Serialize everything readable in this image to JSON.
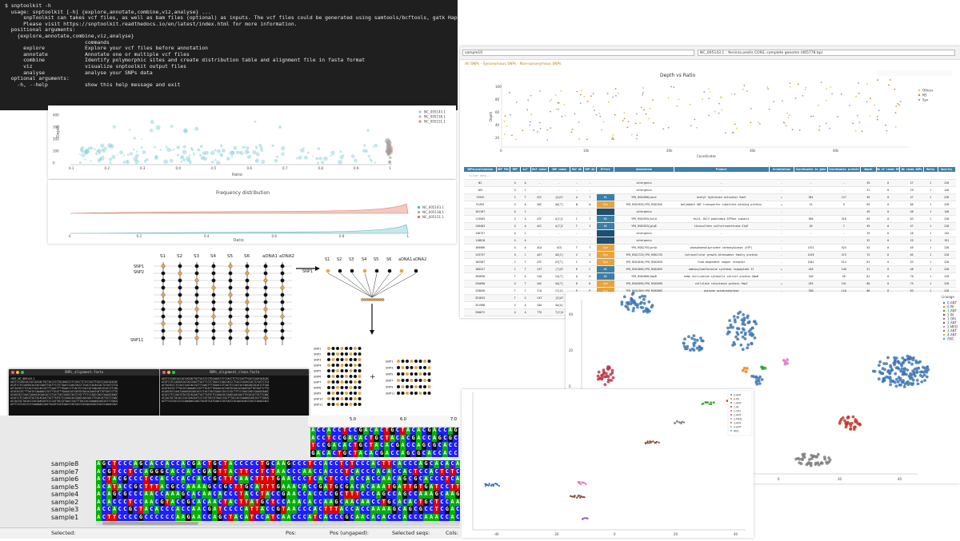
{
  "terminal": {
    "lines": [
      "$ snptoolkit -h",
      "  usage: snptoolkit [-h] {explore,annotate,combine,viz,analyse} ...",
      "",
      "      snpToolkit can takes vcf files, as well as bam files (optional) as inputs. The vcf files could be generated using samtools/bcftools, gatk HaplotypeCaller or freeBayes.",
      "      Please visit https://snptoolkit.readthedocs.io/en/latest/index.html for more information.",
      "",
      "",
      "  positional arguments:",
      "    {explore,annotate,combine,viz,analyse}",
      "                          commands",
      "      explore             Explore your vcf files before annotation",
      "      annotate            Annotate one or multiple vcf files",
      "      combine             Identify polymorphic sites and create distribution table and alignment file in fasta format",
      "      viz                 visualize snptoolkit output files",
      "      analyse             analyse your SNPs data",
      "",
      "  optional arguments:",
      "    -h, --help            show this help message and exit"
    ]
  },
  "depth_plot": {
    "legend": [
      "NC_005143.1",
      "NC_005138.1",
      "NC_005151.1"
    ],
    "y_ticks": [
      "400",
      "300",
      "200",
      "100",
      "0"
    ],
    "x_ticks": [
      "0.1",
      "0.2",
      "0.3",
      "0.4",
      "0.5",
      "0.6",
      "0.7",
      "0.8",
      "0.9",
      "1"
    ],
    "ylabel": "Depth",
    "xlabel": "Ratio"
  },
  "freq_plot": {
    "title": "Frequency distribution",
    "legend": [
      "NC_005143.1",
      "NC_005138.1",
      "NC_005151.1"
    ],
    "x_ticks": [
      "0",
      "0.2",
      "0.4",
      "0.6",
      "0.8",
      "1"
    ],
    "xlabel": "Ratio"
  },
  "diagram": {
    "columns": [
      "S1",
      "S2",
      "S3",
      "S4",
      "S5",
      "S6",
      "aDNA1",
      "aDNA2"
    ],
    "row_labels": [
      "SNP1",
      "SNP2",
      "SNP11"
    ],
    "right_columns": [
      "S1",
      "S2",
      "S3",
      "S4",
      "S5",
      "S6",
      "aDNA1",
      "aDNA2"
    ],
    "right_row_label": "SNP1",
    "mini_rows_left": [
      "SNP1",
      "SNP2",
      "SNP3",
      "SNP4",
      "SNP5",
      "SNP6",
      "SNP7",
      "SNP8",
      "SNP9",
      "SNP10",
      "SNP11"
    ],
    "mini_rows_right": [
      "SNP1",
      "SNP3",
      "SNP5",
      "SNP7",
      "SNP9",
      "SNP11"
    ],
    "plus": "+"
  },
  "browser": {
    "sample": "sample10",
    "accession": "NC_005143.1 : Yersinia pestis CO92, complete genome (465778 bp)",
    "subnav": "All SNPs - Synonymous SNPs - Non-synonymous SNPs",
    "chart_title": "Depth vs Ratio",
    "chart_xlabel": "Coordinates",
    "chart_ylabel": "Depth",
    "chart_legend": [
      "Others",
      "NS",
      "Syn"
    ],
    "chart_yticks": [
      "100",
      "80",
      "60",
      "40",
      "20"
    ],
    "chart_xticks": [
      "0",
      "10k",
      "20k",
      "30k",
      "40k"
    ]
  },
  "table": {
    "headers": [
      "SNPsLocalization",
      "REF POS",
      "REF",
      "ALT",
      "Ref codon",
      "SNP codon",
      "Ref AA",
      "SNP AA",
      "Effect",
      "Annotation",
      "Product",
      "Orientation",
      "Coordinates in gene",
      "Coordinates protein",
      "Depth",
      "Nb of reads REF",
      "Nb reads SNPs",
      "Ratio",
      "Quality"
    ],
    "filter_row": [
      "Filter data...",
      "",
      "",
      "",
      "",
      "",
      "",
      "",
      "",
      "",
      "",
      "",
      "",
      "",
      "",
      "",
      "",
      "",
      ""
    ],
    "rows": [
      [
        "NI",
        "",
        "G",
        "A",
        "-",
        "-",
        "-",
        "-",
        "",
        "intergenic",
        "-",
        "-",
        "-",
        "-",
        "29",
        "0",
        "27",
        "1",
        "228"
      ],
      [
        "165",
        "",
        "G",
        "C",
        "-",
        "-",
        "-",
        "-",
        "",
        "intergenic",
        "-",
        "-",
        "-",
        "-",
        "31",
        "0",
        "29",
        "1",
        "148"
      ],
      [
        "74555",
        "",
        "C",
        "T",
        "GCC",
        "[A]CC",
        "A",
        "T",
        "NS",
        "YPO_RS01890|ansC",
        "acetyl hydrolase activator RsmY",
        "+",
        "381",
        "127",
        "49",
        "0",
        "47",
        "1",
        "228"
      ],
      [
        "91494",
        "",
        "G",
        "A",
        "AAC",
        "AA[T]",
        "N",
        "N",
        "Syn",
        "YPO_RS01935|YPO_RS01945",
        "molybdate ABC transporter substrate-binding protein",
        "+",
        "15",
        "5",
        "69",
        "0",
        "66",
        "1",
        "228"
      ],
      [
        "101167",
        "",
        "A",
        "C",
        "-",
        "-",
        "-",
        "-",
        "",
        "intergenic",
        "-",
        "-",
        "-",
        "-",
        "49",
        "0",
        "46",
        "1",
        "148"
      ],
      [
        "113565",
        "",
        "G",
        "A",
        "ATC",
        "A[C]C",
        "I",
        "T",
        "NS",
        "YPO_RS01955|hslU",
        "HslU--HslV peptidase ATPase subunit",
        "-",
        "956",
        "318",
        "69",
        "0",
        "63",
        "1",
        "228"
      ],
      [
        "130463",
        "",
        "G",
        "A",
        "ACC",
        "A[T]C",
        "T",
        "I",
        "NS",
        "YPO_RS01925|glpE",
        "thiosulfate sulfurtransferase GlpE",
        "-",
        "20",
        "7",
        "49",
        "0",
        "47",
        "1",
        "228"
      ],
      [
        "138757",
        "",
        "A",
        "C",
        "-",
        "-",
        "-",
        "-",
        "",
        "intergenic",
        "-",
        "-",
        "-",
        "-",
        "29",
        "0",
        "28",
        "1",
        "145"
      ],
      [
        "118810",
        "",
        "G",
        "A",
        "-",
        "-",
        "-",
        "-",
        "",
        "intergenic",
        "-",
        "-",
        "-",
        "-",
        "32",
        "0",
        "29",
        "1",
        "191"
      ],
      [
        "169966",
        "",
        "G",
        "A",
        "ACA",
        "ACG",
        "T",
        "T",
        "Syn",
        "YPO_RS01755|prkA",
        "phosphoenolpyruvate carboxykinase (ATP)",
        "-",
        "1572",
        "524",
        "53",
        "0",
        "49",
        "1",
        "228"
      ],
      [
        "153757",
        "",
        "G",
        "C",
        "AGT",
        "AG[C]",
        "S",
        "S",
        "Syn",
        "YPO_RS01725|YPO_RS01735",
        "intracellular growth attenuator family protein",
        "-",
        "1419",
        "473",
        "75",
        "0",
        "65",
        "1",
        "228"
      ],
      [
        "182567",
        "",
        "C",
        "T",
        "ATC",
        "AT[T]",
        "I",
        "I",
        "Syn",
        "YPO_RS01830|YPO_RS01835",
        "YcaO-dependent copper receptor",
        "-",
        "1542",
        "514",
        "61",
        "0",
        "53",
        "1",
        "228"
      ],
      [
        "189227",
        "",
        "C",
        "T",
        "CGT",
        "[T]GT",
        "R",
        "C",
        "NS",
        "YPO_RS01805|YPO_RS01855",
        "adenosylmethionine synthase isopeptide II",
        "+",
        "418",
        "140",
        "51",
        "0",
        "48",
        "1",
        "228"
      ],
      [
        "284638",
        "",
        "T",
        "A",
        "CAG",
        "CA[T]",
        "Q",
        "H",
        "NS",
        "YPO_RS02060|hmuR",
        "heme utilization cytosolic carrier protein HmuR",
        "-",
        "150",
        "50",
        "81",
        "0",
        "76",
        "1",
        "228"
      ],
      [
        "294690",
        "",
        "G",
        "T",
        "GAC",
        "GA[T]",
        "D",
        "D",
        "Syn",
        "YPO_RS02095|YPO_RS02099",
        "cellulose resistance protein YmoI",
        "+",
        "453",
        "151",
        "86",
        "0",
        "75",
        "1",
        "228"
      ],
      [
        "320836",
        "",
        "T",
        "C",
        "CCA",
        "CC[G]",
        "P",
        "P",
        "Syn",
        "YPO_RS02405|YPO_RS02605",
        "quinone oxidoreductase",
        "-",
        "330",
        "110",
        "66",
        "0",
        "63",
        "1",
        "228"
      ],
      [
        "351833",
        "",
        "T",
        "G",
        "CAT",
        "[G]AT",
        "H",
        "D",
        "NS",
        "YPO_RS02715|uaaB",
        "formate-dependent uric acid utilization protein dzpA",
        "+",
        "1851",
        "617",
        "242",
        "0",
        "90",
        "1",
        "228"
      ],
      [
        "351908",
        "",
        "G",
        "A",
        "GAA",
        "GA[A]",
        "E",
        "",
        "",
        "",
        "",
        "",
        "",
        "",
        "",
        "",
        "",
        "",
        ""
      ],
      [
        "356672",
        "",
        "G",
        "A",
        "TTG",
        "T[C]G",
        "L",
        "",
        "",
        "",
        "",
        "",
        "",
        "",
        "",
        "",
        "",
        "",
        ""
      ],
      [
        "442439",
        "",
        "T",
        "C",
        "-",
        "-",
        "-",
        "",
        "",
        "",
        "",
        "",
        "",
        "",
        "",
        "",
        "",
        "",
        ""
      ]
    ]
  },
  "left_window": {
    "title": "SNPs_alignment.fasta",
    "header": ">REF_NC_005143.1"
  },
  "right_window": {
    "title": "SNPs_alignment_clean.fasta"
  },
  "tsne_large": {
    "legend_title": "Lineage",
    "legend_items": [
      "0.ANT",
      "0.PE",
      "1.ANT",
      "1.IN",
      "1.ORI",
      "2.ANT",
      "2.MED",
      "3.ANT",
      "4.ANT",
      "ANC"
    ],
    "x_ticks": [
      "-60",
      "-40",
      "-20",
      "0",
      "20",
      "40"
    ],
    "y_ticks": [
      "40",
      "20",
      "0",
      "-20",
      "-40"
    ]
  },
  "tsne_small": {
    "legend_items": [
      "0.ANT",
      "0.PE",
      "1.ANT",
      "1.IN",
      "1.ORI",
      "2.ANT",
      "2.MED",
      "3.ANT",
      "4.ANT",
      "ANC"
    ],
    "x_ticks": [
      "-40",
      "-20",
      "0",
      "20",
      "40"
    ]
  },
  "alignment": {
    "ruler": [
      "5.0",
      "6.0",
      "7.0"
    ],
    "samples": [
      "sample8",
      "sample7",
      "sample6",
      "sample5",
      "sample4",
      "sample2",
      "sample3",
      "sample1"
    ],
    "sequences": [
      "AGCTCCCAGCACCACCACGACTGCTACCCCCTGCAAGCCCTCCACCTCTCCCACTTCACCCAGCACACAC",
      "ACGTCCTCCAGGGCACCACCGAGTTACTTCCTCTAACCCAACCACCCTCACCCACACCACTCCACTCTCA",
      "ACTACGCCCTCCACCCACCACCGCTTCAACTTTTGAACCCTCACTCCCACCACCAACAGCGCACCCTCAG",
      "ACATACCGCTTTACGCCAAAAGCCGCTTGCATTTGAAACACCGATGCGACACAAATGATTGTGATCCTTG",
      "ACAGCGCCCAACCAAAGCACAACACCCTACCTACCGAACCACCCCGCTTTCCCAGCCAGCCAAAGCAAGC",
      "ACACCCTCCAACGTACCGCACAACTACTTATGCTCCAAACACCAAGCAACAACCTGCACACTGCTCCAAC",
      "ACCACCGCTACACCCACCAACGATCCCCATTACCGTAACCCACTTTACCACCAAAAGCAGCGCCTCGACG",
      "ACTTCCCCGCCCCCCAAGAACCAGCTACATCCATCAACCCATCACCCGCAACACACCCACCCAAACCACC"
    ],
    "top_sequence": "ACCACCTCCGACACTGCTACACGACCAGCGCACCACCACTCCGCCACCCAAAGCACC"
  },
  "status": {
    "selected": "Selected:",
    "pos": "Pos:",
    "pos_ungaped": "Pos (ungaped):",
    "selected_seqs": "Selected seqs:",
    "cols": "Cols:"
  },
  "colors": {
    "A": "#00b000",
    "C": "#1f1fff",
    "G": "#111111",
    "T": "#e00000",
    "syn": "#e8a33d",
    "ns": "#3b7fa6",
    "table_header": "#3b7fa6"
  }
}
